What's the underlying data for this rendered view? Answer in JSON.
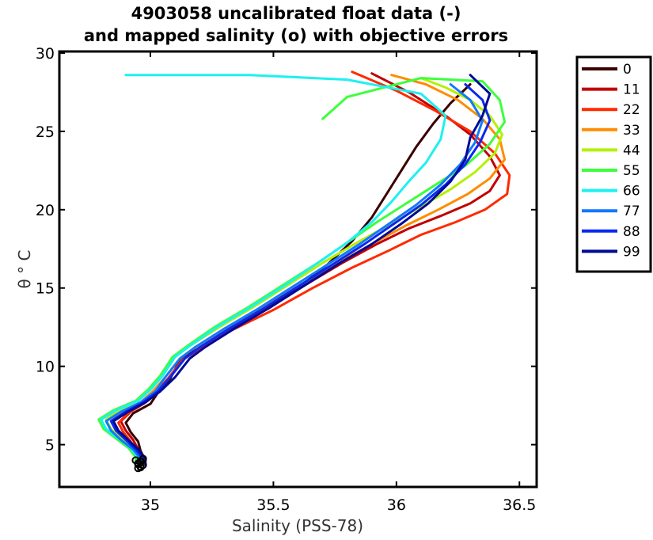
{
  "chart_data": {
    "type": "line",
    "title_line1": "4903058 uncalibrated float data (-)",
    "title_line2": "and mapped salinity (o) with objective errors",
    "xlabel": "Salinity (PSS-78)",
    "ylabel": "θ ° C",
    "xlim": [
      34.63,
      36.57
    ],
    "ylim": [
      2.3,
      30.1
    ],
    "xticks": [
      35,
      35.5,
      36,
      36.5
    ],
    "xtick_labels": [
      "35",
      "35.5",
      "36",
      "36.5"
    ],
    "yticks": [
      5,
      10,
      15,
      20,
      25,
      30
    ],
    "ytick_labels": [
      "5",
      "10",
      "15",
      "20",
      "25",
      "30"
    ],
    "grid": false,
    "legend_position": "outside-right",
    "legend": [
      {
        "label": "0",
        "color": "#3a0000"
      },
      {
        "label": "11",
        "color": "#c00000"
      },
      {
        "label": "22",
        "color": "#ff2a00"
      },
      {
        "label": "33",
        "color": "#ff8c00"
      },
      {
        "label": "44",
        "color": "#b4f000"
      },
      {
        "label": "55",
        "color": "#3cff3c"
      },
      {
        "label": "66",
        "color": "#1ef0f0"
      },
      {
        "label": "77",
        "color": "#1478ff"
      },
      {
        "label": "88",
        "color": "#0a28f0"
      },
      {
        "label": "99",
        "color": "#000a96"
      }
    ],
    "series": [
      {
        "profile": "0",
        "color": "#3a0000",
        "x": [
          34.96,
          34.98,
          34.96,
          34.95,
          34.92,
          34.9,
          34.93,
          35.0,
          35.03,
          35.08,
          35.12,
          35.18,
          35.3,
          35.45,
          35.6,
          35.72,
          35.82,
          35.9,
          35.96,
          36.02,
          36.08,
          36.15,
          36.22,
          36.3
        ],
        "y": [
          3.6,
          4.0,
          4.6,
          5.2,
          5.8,
          6.4,
          7.0,
          7.6,
          8.3,
          9.2,
          10.4,
          11.0,
          12.2,
          13.5,
          15.0,
          16.5,
          18.0,
          19.5,
          21.0,
          22.5,
          24.0,
          25.5,
          26.8,
          28.0
        ]
      },
      {
        "profile": "11",
        "color": "#c00000",
        "x": [
          34.97,
          34.98,
          34.95,
          34.93,
          34.9,
          34.88,
          34.92,
          34.98,
          35.03,
          35.08,
          35.14,
          35.2,
          35.32,
          35.48,
          35.63,
          35.78,
          35.92,
          36.05,
          36.18,
          36.3,
          36.38,
          36.42,
          36.38,
          36.3,
          36.2,
          36.05,
          35.9
        ],
        "y": [
          3.7,
          4.1,
          4.7,
          5.3,
          5.9,
          6.5,
          7.1,
          7.7,
          8.4,
          9.3,
          10.5,
          11.2,
          12.4,
          13.7,
          15.2,
          16.6,
          17.8,
          18.8,
          19.6,
          20.4,
          21.2,
          22.2,
          23.4,
          24.8,
          26.0,
          27.5,
          28.7
        ]
      },
      {
        "profile": "22",
        "color": "#ff2a00",
        "x": [
          34.96,
          34.97,
          34.94,
          34.92,
          34.89,
          34.87,
          34.91,
          34.97,
          35.02,
          35.07,
          35.13,
          35.2,
          35.33,
          35.5,
          35.66,
          35.82,
          35.97,
          36.1,
          36.24,
          36.36,
          36.45,
          36.46,
          36.4,
          36.3,
          36.16,
          36.0,
          35.82
        ],
        "y": [
          3.6,
          4.0,
          4.6,
          5.2,
          5.8,
          6.4,
          7.0,
          7.6,
          8.3,
          9.2,
          10.4,
          11.1,
          12.3,
          13.6,
          15.0,
          16.3,
          17.4,
          18.4,
          19.2,
          20.0,
          21.0,
          22.2,
          23.6,
          25.0,
          26.3,
          27.6,
          28.8
        ]
      },
      {
        "profile": "33",
        "color": "#ff8c00",
        "x": [
          34.95,
          34.96,
          34.93,
          34.9,
          34.86,
          34.84,
          34.89,
          34.96,
          35.01,
          35.06,
          35.12,
          35.18,
          35.3,
          35.45,
          35.6,
          35.75,
          35.9,
          36.04,
          36.17,
          36.29,
          36.38,
          36.44,
          36.42,
          36.35,
          36.25,
          36.12,
          35.98
        ],
        "y": [
          3.7,
          4.1,
          4.7,
          5.3,
          5.9,
          6.5,
          7.1,
          7.7,
          8.4,
          9.3,
          10.5,
          11.2,
          12.4,
          13.7,
          15.1,
          16.5,
          17.8,
          19.0,
          20.0,
          21.0,
          22.0,
          23.2,
          24.5,
          25.8,
          27.0,
          28.0,
          28.6
        ]
      },
      {
        "profile": "44",
        "color": "#b4f000",
        "x": [
          34.95,
          34.95,
          34.92,
          34.88,
          34.84,
          34.82,
          34.87,
          34.95,
          35.0,
          35.05,
          35.1,
          35.16,
          35.28,
          35.42,
          35.56,
          35.7,
          35.84,
          35.98,
          36.1,
          36.22,
          36.32,
          36.4,
          36.43,
          36.38,
          36.3,
          36.2,
          36.1
        ],
        "y": [
          3.8,
          4.2,
          4.8,
          5.4,
          6.0,
          6.6,
          7.2,
          7.8,
          8.5,
          9.4,
          10.6,
          11.3,
          12.5,
          13.8,
          15.2,
          16.6,
          17.9,
          19.1,
          20.2,
          21.3,
          22.4,
          23.6,
          24.8,
          26.0,
          27.0,
          27.8,
          28.4
        ]
      },
      {
        "profile": "55",
        "color": "#3cff3c",
        "x": [
          34.94,
          34.94,
          34.91,
          34.86,
          34.81,
          34.79,
          34.85,
          34.94,
          34.99,
          35.04,
          35.09,
          35.15,
          35.26,
          35.4,
          35.54,
          35.68,
          35.8,
          35.92,
          36.04,
          36.16,
          36.28,
          36.38,
          36.44,
          36.42,
          36.35,
          36.1,
          35.8,
          35.7
        ],
        "y": [
          3.8,
          4.2,
          4.8,
          5.4,
          6.0,
          6.6,
          7.2,
          7.8,
          8.5,
          9.4,
          10.6,
          11.3,
          12.5,
          13.8,
          15.2,
          16.6,
          17.9,
          19.2,
          20.4,
          21.6,
          22.8,
          24.2,
          25.6,
          27.0,
          28.2,
          28.4,
          27.2,
          25.8
        ]
      },
      {
        "profile": "66",
        "color": "#1ef0f0",
        "x": [
          34.95,
          34.95,
          34.92,
          34.87,
          34.82,
          34.8,
          34.86,
          34.95,
          35.0,
          35.05,
          35.1,
          35.16,
          35.27,
          35.41,
          35.55,
          35.68,
          35.8,
          35.9,
          35.98,
          36.05,
          36.12,
          36.18,
          36.2,
          36.1,
          35.8,
          35.4,
          34.9
        ],
        "y": [
          3.8,
          4.2,
          4.8,
          5.4,
          6.0,
          6.6,
          7.2,
          7.8,
          8.5,
          9.4,
          10.6,
          11.3,
          12.5,
          13.8,
          15.2,
          16.6,
          17.9,
          19.2,
          20.5,
          21.8,
          23.0,
          24.5,
          26.0,
          27.4,
          28.3,
          28.6,
          28.6
        ]
      },
      {
        "profile": "77",
        "color": "#1478ff",
        "x": [
          34.96,
          34.96,
          34.93,
          34.88,
          34.84,
          34.82,
          34.88,
          34.96,
          35.02,
          35.06,
          35.12,
          35.18,
          35.3,
          35.44,
          35.58,
          35.72,
          35.85,
          35.97,
          36.08,
          36.18,
          36.26,
          36.32,
          36.35,
          36.3,
          36.22
        ],
        "y": [
          3.7,
          4.1,
          4.7,
          5.3,
          5.9,
          6.5,
          7.1,
          7.7,
          8.4,
          9.3,
          10.5,
          11.2,
          12.4,
          13.7,
          15.1,
          16.5,
          17.8,
          19.1,
          20.3,
          21.6,
          22.9,
          24.3,
          25.7,
          27.0,
          28.0
        ]
      },
      {
        "profile": "88",
        "color": "#0a28f0",
        "x": [
          34.97,
          34.97,
          34.94,
          34.9,
          34.86,
          34.84,
          34.9,
          34.97,
          35.03,
          35.08,
          35.14,
          35.2,
          35.32,
          35.46,
          35.6,
          35.74,
          35.87,
          35.99,
          36.1,
          36.2,
          36.28,
          36.34,
          36.38,
          36.35,
          36.28
        ],
        "y": [
          3.7,
          4.1,
          4.7,
          5.3,
          5.9,
          6.5,
          7.1,
          7.7,
          8.4,
          9.3,
          10.5,
          11.2,
          12.4,
          13.7,
          15.1,
          16.5,
          17.8,
          19.1,
          20.3,
          21.6,
          22.9,
          24.3,
          25.7,
          27.0,
          28.0
        ]
      },
      {
        "profile": "99",
        "color": "#000a96",
        "x": [
          34.98,
          34.98,
          34.95,
          34.91,
          34.87,
          34.85,
          34.91,
          34.98,
          35.04,
          35.1,
          35.16,
          35.22,
          35.34,
          35.48,
          35.62,
          35.76,
          35.9,
          36.02,
          36.13,
          36.22,
          36.28,
          36.3,
          36.35,
          36.38,
          36.3
        ],
        "y": [
          3.7,
          4.1,
          4.7,
          5.3,
          5.9,
          6.5,
          7.1,
          7.7,
          8.4,
          9.3,
          10.5,
          11.2,
          12.4,
          13.7,
          15.1,
          16.5,
          17.8,
          19.1,
          20.4,
          21.8,
          23.2,
          24.6,
          26.0,
          27.4,
          28.6
        ]
      }
    ],
    "mapped_points": {
      "color": "#000000",
      "x": [
        34.95,
        34.96,
        34.97,
        34.95,
        34.96,
        34.94,
        34.97,
        34.96,
        34.95,
        34.96
      ],
      "y": [
        3.5,
        3.6,
        3.7,
        3.8,
        3.9,
        4.0,
        4.1,
        3.55,
        3.75,
        3.95
      ]
    }
  }
}
